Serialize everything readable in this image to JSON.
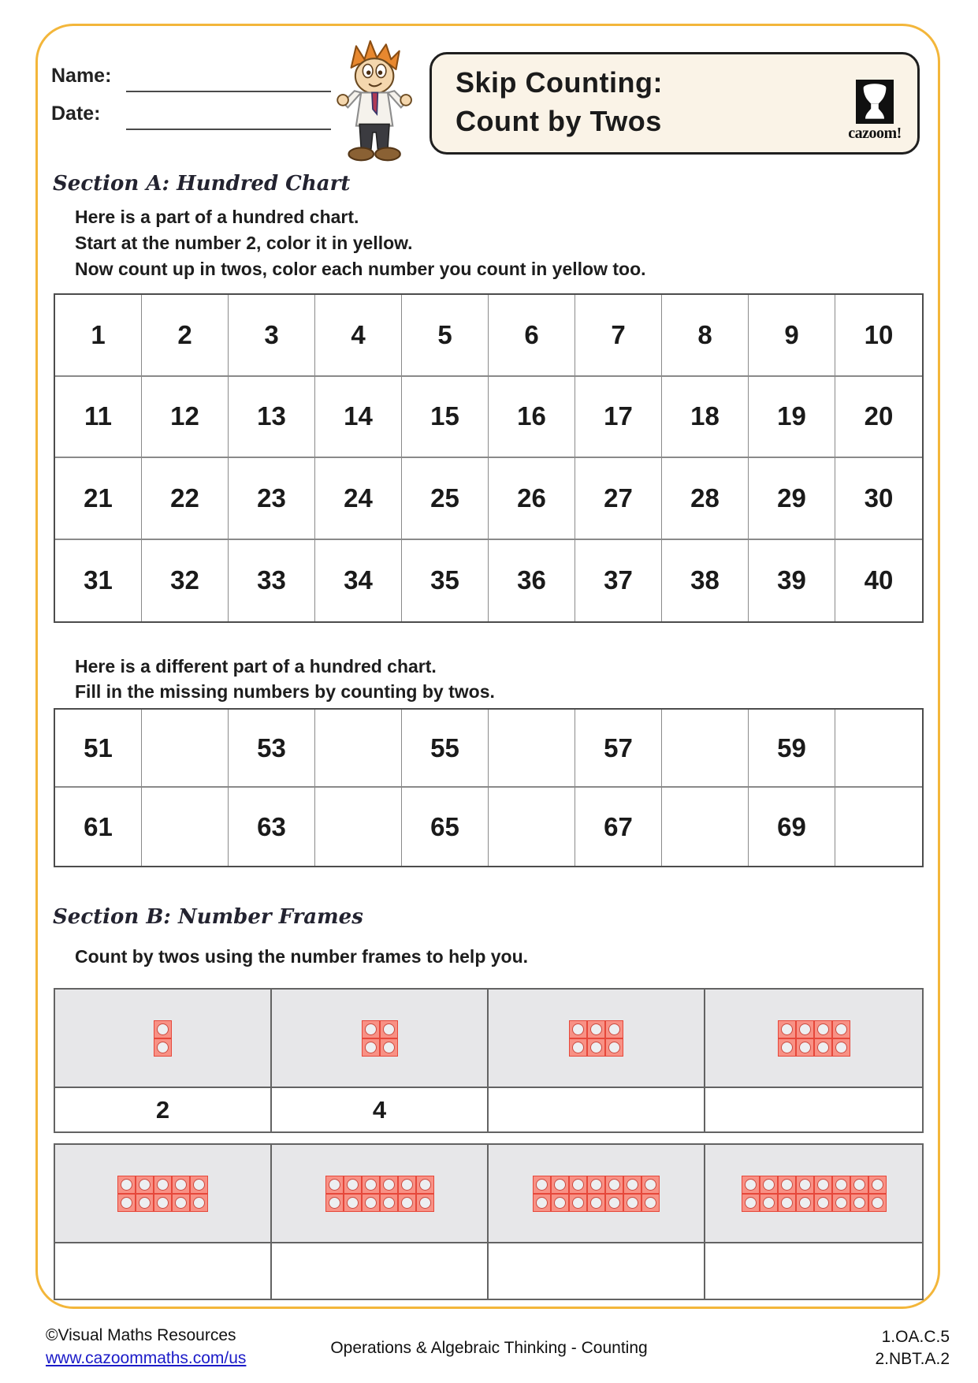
{
  "header": {
    "name_label": "Name:",
    "date_label": "Date:",
    "title_line1": "Skip Counting:",
    "title_line2": "Count by Twos",
    "logo_text": "cazoom!"
  },
  "section_a": {
    "heading": "Section A: Hundred Chart",
    "intro_lines": [
      "Here is a part of a hundred chart.",
      "Start at the number 2, color it in yellow.",
      "Now count up in twos, color each number you count in yellow too."
    ],
    "chart1_rows": [
      [
        "1",
        "2",
        "3",
        "4",
        "5",
        "6",
        "7",
        "8",
        "9",
        "10"
      ],
      [
        "11",
        "12",
        "13",
        "14",
        "15",
        "16",
        "17",
        "18",
        "19",
        "20"
      ],
      [
        "21",
        "22",
        "23",
        "24",
        "25",
        "26",
        "27",
        "28",
        "29",
        "30"
      ],
      [
        "31",
        "32",
        "33",
        "34",
        "35",
        "36",
        "37",
        "38",
        "39",
        "40"
      ]
    ],
    "middle_lines": [
      "Here is a different part of a hundred chart.",
      "Fill in the missing numbers by counting by twos."
    ],
    "chart2_rows": [
      [
        "51",
        "",
        "53",
        "",
        "55",
        "",
        "57",
        "",
        "59",
        ""
      ],
      [
        "61",
        "",
        "63",
        "",
        "65",
        "",
        "67",
        "",
        "69",
        ""
      ]
    ]
  },
  "section_b": {
    "heading": "Section B: Number Frames",
    "intro": "Count by twos using the number frames to help you.",
    "frame_tables": [
      {
        "frames": [
          {
            "columns": 1,
            "rows": 2,
            "count": 2
          },
          {
            "columns": 2,
            "rows": 2,
            "count": 4
          },
          {
            "columns": 3,
            "rows": 2,
            "count": 6
          },
          {
            "columns": 4,
            "rows": 2,
            "count": 8
          }
        ],
        "answers": [
          "2",
          "4",
          "",
          ""
        ]
      },
      {
        "frames": [
          {
            "columns": 5,
            "rows": 2,
            "count": 10
          },
          {
            "columns": 6,
            "rows": 2,
            "count": 12
          },
          {
            "columns": 7,
            "rows": 2,
            "count": 14
          },
          {
            "columns": 8,
            "rows": 2,
            "count": 16
          }
        ],
        "answers": [
          "",
          "",
          "",
          ""
        ]
      }
    ]
  },
  "footer": {
    "copyright": "©Visual Maths Resources",
    "link": "www.cazoommaths.com/us",
    "center": "Operations & Algebraic Thinking - Counting",
    "codes": [
      "1.OA.C.5",
      "2.NBT.A.2"
    ]
  },
  "colors": {
    "page_border": "#f3b63a",
    "title_box_bg": "#faf3e7",
    "frame_fill": "#f89185",
    "frame_border": "#e6483b",
    "frame_row_bg": "#e7e7e9",
    "link_blue": "#1a1ac8"
  }
}
